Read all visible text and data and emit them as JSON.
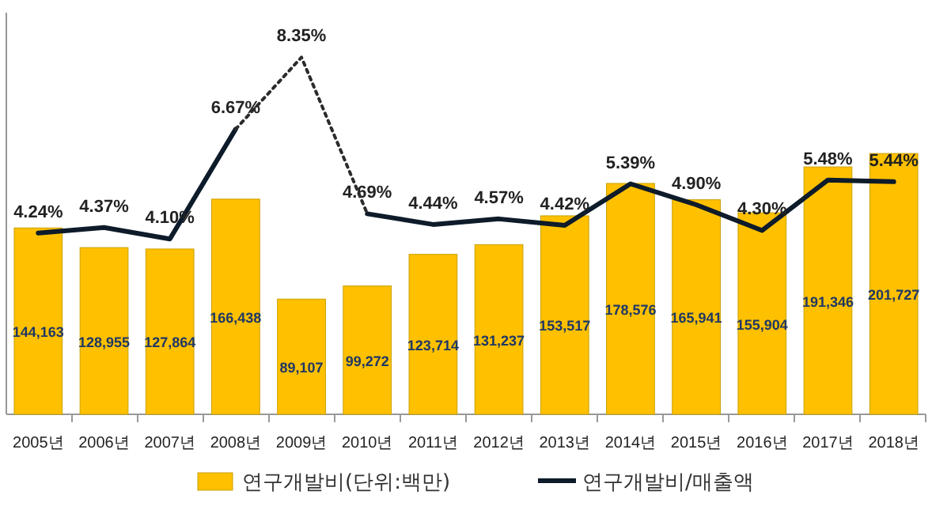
{
  "chart_data": {
    "type": "bar",
    "categories": [
      "2005년",
      "2006년",
      "2007년",
      "2008년",
      "2009년",
      "2010년",
      "2011년",
      "2012년",
      "2013년",
      "2014년",
      "2015년",
      "2016년",
      "2017년",
      "2018년"
    ],
    "series": [
      {
        "name": "연구개발비(단위:백만)",
        "color": "#ffc000",
        "values": [
          144163,
          128955,
          127864,
          166438,
          89107,
          99272,
          123714,
          131237,
          153517,
          178576,
          165941,
          155904,
          191346,
          201727
        ],
        "value_labels": [
          "144,163",
          "128,955",
          "127,864",
          "166,438",
          "89,107",
          "99,272",
          "123,714",
          "131,237",
          "153,517",
          "178,576",
          "165,941",
          "155,904",
          "191,346",
          "201,727"
        ]
      },
      {
        "name": "연구개발비/매출액",
        "type": "line",
        "axis": "y2",
        "color": "#0d1b2a",
        "line_style": "solid",
        "values": [
          4.24,
          4.37,
          4.1,
          6.67,
          null,
          4.69,
          4.44,
          4.57,
          4.42,
          5.39,
          4.9,
          4.3,
          5.48,
          5.44
        ],
        "value_labels": [
          "4.24%",
          "4.37%",
          "4.10%",
          "6.67%",
          null,
          "4.69%",
          "4.44%",
          "4.57%",
          "4.42%",
          "5.39%",
          "4.90%",
          "4.30%",
          "5.48%",
          "5.44%"
        ]
      },
      {
        "type": "line",
        "axis": "y2",
        "color": "#2b2b2b",
        "line_style": "dotted",
        "values": [
          null,
          null,
          null,
          6.67,
          8.35,
          4.69,
          null,
          null,
          null,
          null,
          null,
          null,
          null,
          null
        ],
        "value_labels": [
          null,
          null,
          null,
          null,
          "8.35%",
          null,
          null,
          null,
          null,
          null,
          null,
          null,
          null,
          null
        ]
      }
    ],
    "tick_labels": "x",
    "legend": "bottom",
    "data_labels": true
  }
}
